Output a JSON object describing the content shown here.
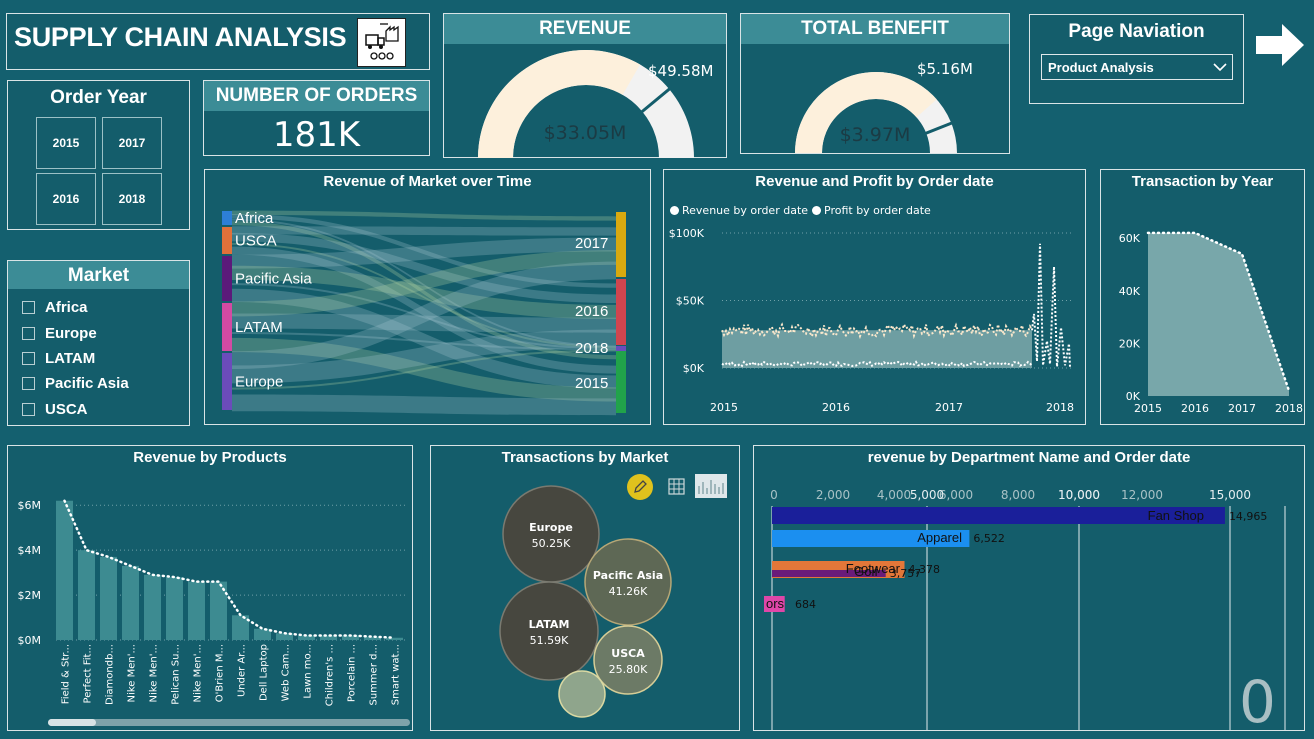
{
  "header": {
    "title": "SUPPLY CHAIN ANALYSIS",
    "logo_icon": "supply-chain-icon"
  },
  "order_year": {
    "title": "Order Year",
    "years": [
      "2015",
      "2017",
      "2016",
      "2018"
    ]
  },
  "orders": {
    "title": "NUMBER OF ORDERS",
    "value": "181K"
  },
  "revenue": {
    "title": "REVENUE",
    "value": "$33.05M",
    "target": "$49.58M",
    "fraction": 0.667
  },
  "benefit": {
    "title": "TOTAL BENEFIT",
    "value": "$3.97M",
    "target": "$5.16M",
    "fraction": 0.77
  },
  "page_nav": {
    "title": "Page Naviation",
    "selected": "Product Analysis",
    "arrow_icon": "arrow-right-icon"
  },
  "market": {
    "title": "Market",
    "items": [
      "Africa",
      "Europe",
      "LATAM",
      "Pacific Asia",
      "USCA"
    ]
  },
  "sankey": {
    "title": "Revenue of Market over Time",
    "markets": [
      {
        "name": "Africa",
        "color": "#2d7fd6"
      },
      {
        "name": "USCA",
        "color": "#e0713a"
      },
      {
        "name": "Pacific Asia",
        "color": "#5b1a7a"
      },
      {
        "name": "LATAM",
        "color": "#d34aa3"
      },
      {
        "name": "Europe",
        "color": "#6b4cbb"
      }
    ],
    "years": [
      {
        "name": "2017",
        "color": "#d9a90f"
      },
      {
        "name": "2016",
        "color": "#d0454f"
      },
      {
        "name": "2018",
        "color": "#6b4cbb"
      },
      {
        "name": "2015",
        "color": "#21a34a"
      }
    ]
  },
  "chart_data": [
    {
      "type": "line",
      "title": "Revenue and Profit by Order date",
      "series": [
        {
          "name": "Revenue by order date",
          "approx_level": 28000
        },
        {
          "name": "Profit by order date",
          "approx_level": 3000
        }
      ],
      "peak": 92000,
      "y_ticks": [
        "$0K",
        "$50K",
        "$100K"
      ],
      "x_ticks": [
        "2015",
        "2016",
        "2017",
        "2018"
      ],
      "ylim": [
        0,
        100000
      ]
    },
    {
      "type": "area",
      "title": "Transaction by Year",
      "categories": [
        "2015",
        "2016",
        "2017",
        "2018"
      ],
      "values": [
        62000,
        62000,
        54000,
        2000
      ],
      "y_ticks": [
        "0K",
        "20K",
        "40K",
        "60K"
      ],
      "ylim": [
        0,
        65000
      ]
    },
    {
      "type": "bar",
      "title": "Revenue by Products",
      "categories": [
        "Field & Str...",
        "Perfect Fit...",
        "Diamondb...",
        "Nike Men'...",
        "Nike Men'...",
        "Pelican Su...",
        "Nike Men'...",
        "O'Brien M...",
        "Under Ar...",
        "Dell Laptop",
        "Web Cam...",
        "Lawn mo...",
        "Children's ...",
        "Porcelain ...",
        "Summer d...",
        "Smart wat..."
      ],
      "values": [
        6.2,
        4.0,
        3.7,
        3.3,
        2.9,
        2.8,
        2.6,
        2.6,
        1.1,
        0.5,
        0.3,
        0.2,
        0.2,
        0.2,
        0.15,
        0.1
      ],
      "y_ticks": [
        "$0M",
        "$2M",
        "$4M",
        "$6M"
      ],
      "ylim": [
        0,
        6.5
      ]
    },
    {
      "type": "scatter",
      "title": "Transactions by Market",
      "points": [
        {
          "name": "Europe",
          "value": "50.25K"
        },
        {
          "name": "Pacific Asia",
          "value": "41.26K"
        },
        {
          "name": "LATAM",
          "value": "51.59K"
        },
        {
          "name": "USCA",
          "value": "25.80K"
        },
        {
          "name": "",
          "value": ""
        }
      ]
    },
    {
      "type": "bar",
      "title": "revenue by Department Name and Order date",
      "bars": [
        {
          "label": "Fan Shop",
          "value": 14965,
          "value_label": "14,965",
          "color": "#1a1f9a"
        },
        {
          "label": "Apparel",
          "value": 6522,
          "value_label": "6,522",
          "color": "#1b8ff0"
        },
        {
          "label": "Footwear",
          "value": 4378,
          "value_label": "4,378",
          "color": "#e37739"
        },
        {
          "label": "Golf",
          "value": 3757,
          "value_label": "3,757",
          "color": "#6a1b7a"
        },
        {
          "label": "ors",
          "value": 684,
          "value_label": "684",
          "color": "#e046a8"
        }
      ],
      "x_ticks_top": [
        "0",
        "2,000",
        "4,000",
        "6,000",
        "8,000",
        "10,000",
        "12,000"
      ],
      "x_ticks_bottom": [
        "5,000",
        "10,000",
        "15,000"
      ],
      "big_number": "0",
      "xlim": [
        0,
        15000
      ]
    }
  ]
}
